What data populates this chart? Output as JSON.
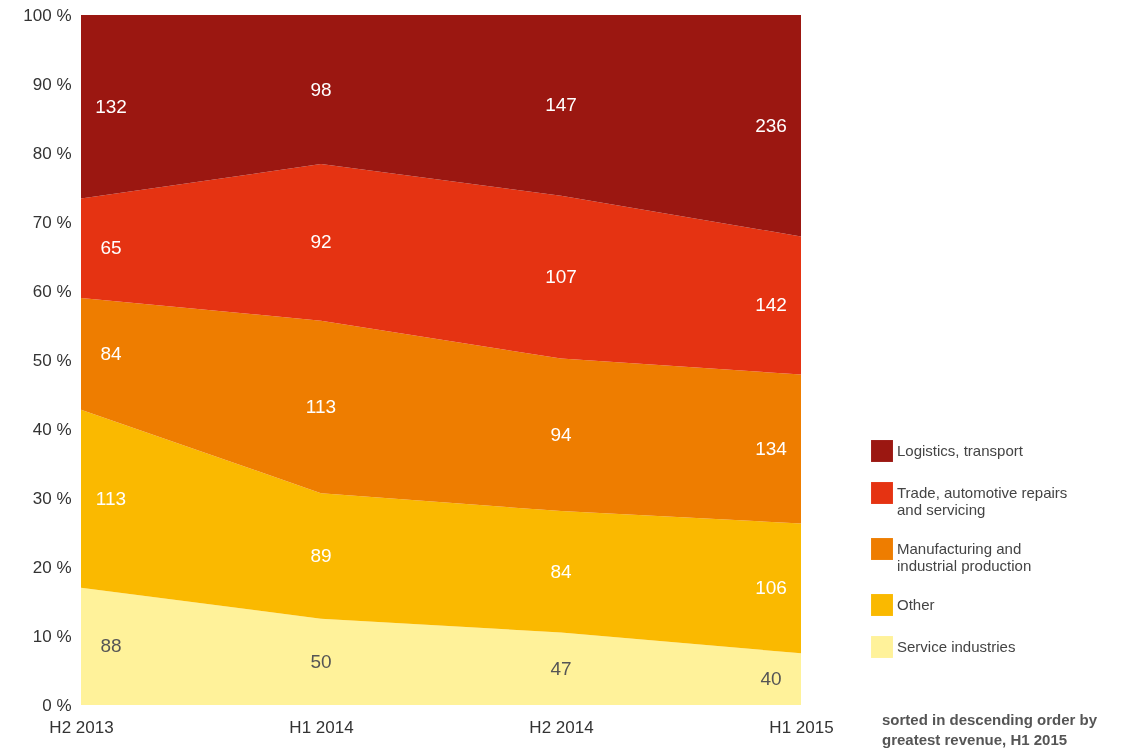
{
  "chart_data": {
    "type": "area",
    "stacked": true,
    "categories": [
      "H2 2013",
      "H1 2014",
      "H2 2014",
      "H1 2015"
    ],
    "ylim": [
      0,
      100
    ],
    "yticks": [
      {
        "value": 0,
        "label": "0 %"
      },
      {
        "value": 10,
        "label": "10 %"
      },
      {
        "value": 20,
        "label": "20 %"
      },
      {
        "value": 30,
        "label": "30 %"
      },
      {
        "value": 40,
        "label": "40 %"
      },
      {
        "value": 50,
        "label": "50 %"
      },
      {
        "value": 60,
        "label": "60 %"
      },
      {
        "value": 70,
        "label": "70 %"
      },
      {
        "value": 80,
        "label": "80 %"
      },
      {
        "value": 90,
        "label": "90 %"
      },
      {
        "value": 100,
        "label": "100 %"
      }
    ],
    "series": [
      {
        "name": "Service industries",
        "color": "#fff29a",
        "values": [
          17,
          12.5,
          10.5,
          7.5
        ]
      },
      {
        "name": "Other",
        "color": "#fab900",
        "values": [
          25.8,
          18.2,
          17.6,
          18.8
        ]
      },
      {
        "name": "Manufacturing and industrial production",
        "color": "#ee7d00",
        "values": [
          16.2,
          25,
          22.1,
          21.6
        ]
      },
      {
        "name": "Trade, automotive repairs and servicing",
        "color": "#e53312",
        "values": [
          14.4,
          22.7,
          23.6,
          20
        ]
      },
      {
        "name": "Logistics, transport",
        "color": "#9b1711",
        "values": [
          26.6,
          21.6,
          26.2,
          32.1
        ]
      }
    ],
    "legend": "bottom right",
    "grid": false,
    "annotations": [
      "88",
      "50",
      "47",
      "40",
      "113",
      "89",
      "84",
      "106",
      "84",
      "113",
      "94",
      "134",
      "65",
      "92",
      "107",
      "142",
      "132",
      "98",
      "147",
      "236",
      "sorted in descending order by greatest revenue, H1 2015"
    ]
  }
}
